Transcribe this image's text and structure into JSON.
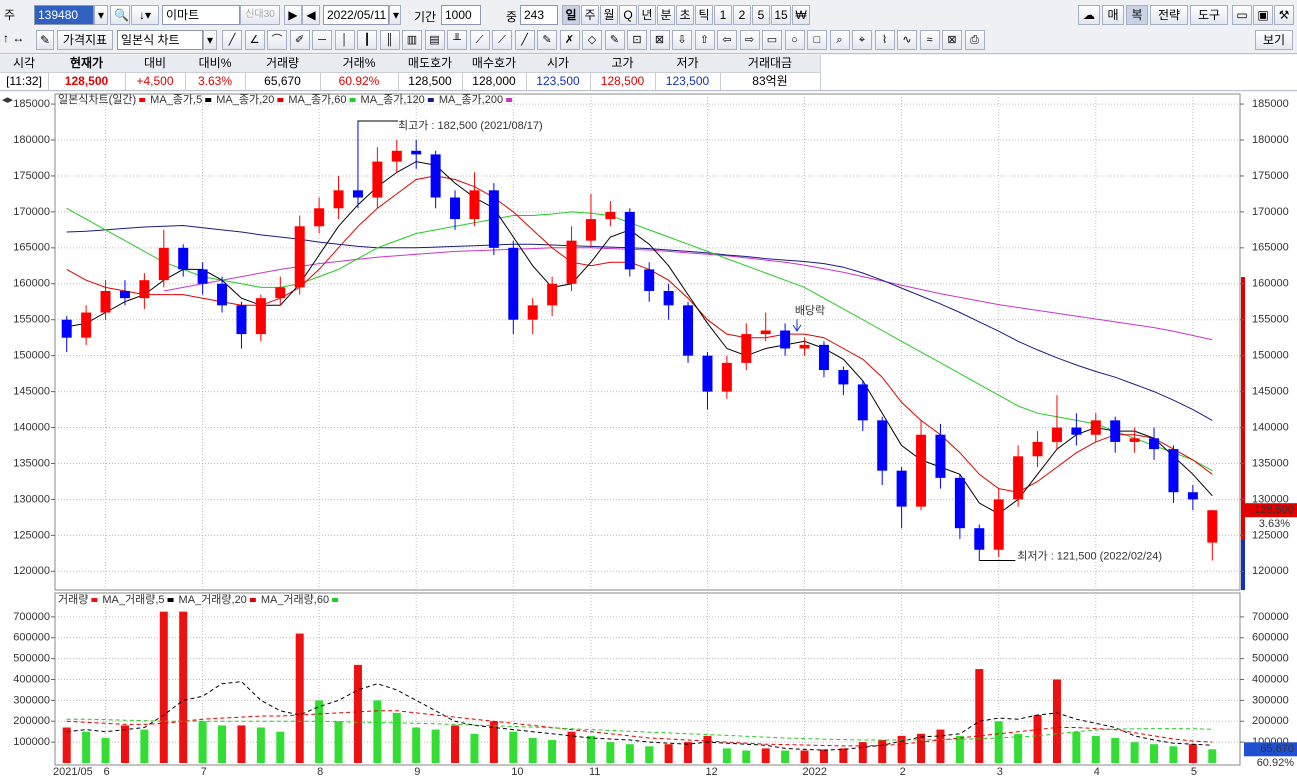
{
  "toolbar": {
    "code_label": "주",
    "code": "139480",
    "name": "이마트",
    "name_tag": "신대30",
    "date": "2022/05/11",
    "period_label": "기간",
    "period": "1000",
    "mid_label": "중",
    "mid": "243",
    "intervals": [
      "일",
      "주",
      "월",
      "Q",
      "년",
      "분",
      "초",
      "틱",
      "1",
      "2",
      "5",
      "15",
      "₩"
    ],
    "right_buttons": [
      "매",
      "복",
      "전략",
      "도구"
    ],
    "indicator": "가격지표",
    "chart_style": "일본식 차트",
    "view": "보기"
  },
  "quote_table": {
    "headers": [
      "시각",
      "현재가",
      "대비",
      "대비%",
      "거래량",
      "거래%",
      "매도호가",
      "매수호가",
      "시가",
      "고가",
      "저가",
      "거래대금"
    ],
    "values": [
      "[11:32]",
      "128,500",
      "+4,500",
      "3.63%",
      "65,670",
      "60.92%",
      "128,500",
      "128,000",
      "123,500",
      "128,500",
      "123,500",
      "83억원"
    ]
  },
  "chart_data": [
    {
      "type": "candlestick",
      "ylim": [
        117400,
        186400
      ],
      "yticks": [
        120000,
        125000,
        130000,
        135000,
        140000,
        145000,
        150000,
        155000,
        160000,
        165000,
        170000,
        175000,
        180000,
        185000
      ],
      "grid": true,
      "annotations": {
        "high": "최고가 : 182,500 (2021/08/17)",
        "low": "최저가 : 121,500 (2022/02/24)",
        "event": "배당락"
      },
      "series": [
        {
          "name": "일본식차트(일간)",
          "color": "#ff0000",
          "down_color": "#0000ff",
          "open": [
            155000,
            152500,
            156000,
            159000,
            158000,
            160500,
            165000,
            162000,
            160000,
            157000,
            153000,
            158000,
            159500,
            168000,
            170500,
            173000,
            172000,
            177000,
            178500,
            178000,
            172000,
            169000,
            173000,
            165000,
            155000,
            157000,
            160000,
            166000,
            169000,
            170000,
            162000,
            159000,
            157000,
            150000,
            145000,
            149000,
            153000,
            153500,
            151000,
            151500,
            148000,
            146000,
            141000,
            134000,
            129000,
            139000,
            133000,
            126000,
            123000,
            130000,
            136000,
            138000,
            140000,
            139000,
            141000,
            138000,
            138500,
            137000,
            131000,
            124000
          ],
          "high": [
            155500,
            157000,
            160500,
            160500,
            161500,
            167500,
            165500,
            163000,
            161000,
            157500,
            158500,
            161000,
            169500,
            172000,
            175000,
            182500,
            179000,
            180000,
            180000,
            178500,
            173000,
            175500,
            174000,
            166000,
            158000,
            161000,
            168000,
            172500,
            171500,
            170500,
            163000,
            160000,
            157500,
            150500,
            150000,
            154500,
            156000,
            154500,
            152500,
            152000,
            148500,
            146500,
            141500,
            134500,
            141000,
            140500,
            133500,
            126500,
            131500,
            137500,
            139500,
            144500,
            142000,
            142000,
            141500,
            140000,
            140000,
            137500,
            132000,
            128500
          ],
          "low": [
            150500,
            151500,
            155000,
            157000,
            156500,
            159500,
            161000,
            158500,
            156000,
            151000,
            152000,
            157000,
            158500,
            167000,
            169000,
            170500,
            170500,
            175500,
            176000,
            170500,
            167500,
            168000,
            164000,
            153000,
            153000,
            155500,
            159000,
            165000,
            168000,
            161000,
            157500,
            155000,
            149000,
            142500,
            144000,
            148000,
            152000,
            150000,
            150000,
            147000,
            144500,
            139500,
            132000,
            126000,
            128500,
            131500,
            124500,
            121500,
            122000,
            129000,
            134500,
            137000,
            137500,
            138000,
            136500,
            136500,
            135500,
            129500,
            128500,
            121500
          ],
          "close": [
            152500,
            156000,
            159000,
            158000,
            160500,
            165000,
            162000,
            160000,
            157000,
            153000,
            158000,
            159500,
            168000,
            170500,
            173000,
            172000,
            177000,
            178500,
            178000,
            172000,
            169000,
            173000,
            165000,
            155000,
            157000,
            160000,
            166000,
            169000,
            170000,
            162000,
            159000,
            157000,
            150000,
            145000,
            149000,
            153000,
            153500,
            151000,
            151500,
            148000,
            146000,
            141000,
            134000,
            129000,
            139000,
            133000,
            126000,
            123000,
            130000,
            136000,
            138000,
            140000,
            139000,
            141000,
            138000,
            138500,
            137000,
            131000,
            130000,
            128500
          ]
        },
        {
          "name": "MA_종가,5",
          "color": "#000000",
          "values": [
            154000,
            154500,
            156000,
            157500,
            158500,
            160500,
            162000,
            162000,
            160500,
            158000,
            157000,
            157000,
            160000,
            164000,
            168000,
            171000,
            173500,
            175500,
            177000,
            176500,
            174000,
            172000,
            170500,
            166500,
            162500,
            159500,
            160000,
            163000,
            166500,
            167500,
            165500,
            162500,
            158500,
            154500,
            151000,
            150000,
            151000,
            151500,
            152000,
            151000,
            149500,
            146500,
            142000,
            137500,
            135500,
            134500,
            133500,
            129500,
            128000,
            130000,
            133500,
            137000,
            139000,
            140000,
            139500,
            139500,
            138500,
            136000,
            133500,
            130500
          ]
        },
        {
          "name": "MA_종가,20",
          "color": "#e00000",
          "values": [
            162000,
            160500,
            159500,
            159000,
            158500,
            158500,
            158500,
            158000,
            157500,
            157000,
            157000,
            158000,
            159500,
            162000,
            165000,
            168000,
            170500,
            172500,
            174500,
            175000,
            174500,
            173500,
            172000,
            170000,
            167500,
            165000,
            163000,
            162500,
            163000,
            163000,
            162000,
            160500,
            158000,
            155000,
            153000,
            152500,
            152500,
            153000,
            153000,
            152500,
            151000,
            149500,
            147000,
            143500,
            141000,
            139000,
            136500,
            133500,
            131500,
            131000,
            132500,
            134500,
            136500,
            138000,
            139000,
            139000,
            138500,
            137000,
            135500,
            133500
          ]
        },
        {
          "name": "MA_종가,60",
          "color": "#22cc22",
          "values": [
            170500,
            169000,
            167500,
            166000,
            164500,
            163000,
            162000,
            161000,
            160500,
            160000,
            159500,
            159500,
            160000,
            161000,
            162000,
            163500,
            165000,
            166000,
            167000,
            167500,
            168000,
            168500,
            169000,
            169500,
            169500,
            169700,
            170000,
            169800,
            169500,
            168500,
            167500,
            166500,
            165500,
            164500,
            163500,
            162500,
            161500,
            160500,
            159500,
            158000,
            156500,
            155000,
            153500,
            152000,
            150500,
            149000,
            147500,
            146000,
            144500,
            143000,
            142000,
            141500,
            141000,
            140500,
            139500,
            138500,
            137500,
            136500,
            135500,
            134000
          ]
        },
        {
          "name": "MA_종가,120",
          "color": "#1a1a80",
          "values": [
            167200,
            167300,
            167500,
            167700,
            167900,
            168000,
            168100,
            167800,
            167500,
            167200,
            166800,
            166500,
            166200,
            165800,
            165500,
            165200,
            165000,
            165000,
            165000,
            165100,
            165200,
            165300,
            165400,
            165500,
            165500,
            165400,
            165300,
            165200,
            165100,
            165000,
            164900,
            164700,
            164500,
            164300,
            164000,
            163800,
            163500,
            163300,
            163100,
            162800,
            162300,
            161500,
            160500,
            159400,
            158300,
            157200,
            156000,
            154700,
            153400,
            152000,
            150800,
            149700,
            148700,
            147800,
            147000,
            146000,
            145000,
            143800,
            142500,
            141000
          ]
        },
        {
          "name": "MA_종가,200",
          "color": "#cc33cc",
          "values": [
            null,
            null,
            null,
            null,
            null,
            159000,
            159500,
            160000,
            160500,
            161000,
            161500,
            162000,
            162400,
            162800,
            163100,
            163400,
            163700,
            163900,
            164100,
            164300,
            164500,
            164600,
            164700,
            164800,
            164900,
            165000,
            165000,
            165000,
            164900,
            164800,
            164700,
            164500,
            164300,
            164100,
            163900,
            163600,
            163300,
            163000,
            162600,
            162100,
            161600,
            161000,
            160400,
            159800,
            159200,
            158600,
            158100,
            157600,
            157100,
            156700,
            156300,
            155900,
            155500,
            155100,
            154700,
            154300,
            153900,
            153400,
            152800,
            152200
          ]
        }
      ]
    },
    {
      "type": "bar",
      "ylim": [
        0,
        800000
      ],
      "yticks": [
        100000,
        200000,
        300000,
        400000,
        500000,
        600000,
        700000
      ],
      "grid": true,
      "categories": [
        "2021/05",
        null,
        "6",
        null,
        null,
        null,
        null,
        "7",
        null,
        null,
        null,
        null,
        null,
        "8",
        null,
        null,
        null,
        null,
        "9",
        null,
        null,
        null,
        null,
        "10",
        null,
        null,
        null,
        "11",
        null,
        null,
        null,
        null,
        null,
        "12",
        null,
        null,
        null,
        null,
        "2022",
        null,
        null,
        null,
        null,
        "2",
        null,
        null,
        null,
        null,
        "3",
        null,
        null,
        null,
        null,
        "4",
        null,
        null,
        null,
        null,
        "5",
        null
      ],
      "series": [
        {
          "name": "거래량",
          "color": "#ee1111",
          "down_color": "#33dd33",
          "values": [
            170000,
            150000,
            120000,
            180000,
            160000,
            725000,
            725000,
            200000,
            180000,
            180000,
            170000,
            150000,
            620000,
            300000,
            200000,
            470000,
            300000,
            240000,
            170000,
            160000,
            180000,
            140000,
            200000,
            150000,
            120000,
            110000,
            150000,
            130000,
            100000,
            90000,
            80000,
            90000,
            100000,
            130000,
            70000,
            60000,
            70000,
            60000,
            60000,
            65000,
            70000,
            100000,
            110000,
            130000,
            140000,
            160000,
            130000,
            450000,
            200000,
            140000,
            230000,
            400000,
            150000,
            130000,
            120000,
            100000,
            90000,
            80000,
            90000,
            65670
          ]
        },
        {
          "name": "MA_거래량,5",
          "color": "#000000",
          "values": [
            150000,
            160000,
            150000,
            160000,
            170000,
            230000,
            300000,
            320000,
            380000,
            390000,
            300000,
            250000,
            230000,
            270000,
            300000,
            350000,
            380000,
            350000,
            300000,
            250000,
            200000,
            180000,
            170000,
            160000,
            150000,
            140000,
            130000,
            120000,
            115000,
            110000,
            100000,
            95000,
            90000,
            100000,
            95000,
            90000,
            85000,
            70000,
            65000,
            62000,
            65000,
            75000,
            85000,
            105000,
            125000,
            130000,
            140000,
            200000,
            215000,
            210000,
            230000,
            240000,
            210000,
            190000,
            170000,
            130000,
            110000,
            95000,
            90000,
            85000
          ]
        },
        {
          "name": "MA_거래량,20",
          "color": "#e00000",
          "values": [
            200000,
            195000,
            190000,
            185000,
            185000,
            190000,
            200000,
            210000,
            215000,
            220000,
            225000,
            225000,
            230000,
            235000,
            240000,
            245000,
            250000,
            250000,
            240000,
            230000,
            220000,
            210000,
            200000,
            190000,
            180000,
            170000,
            160000,
            150000,
            140000,
            130000,
            120000,
            115000,
            110000,
            105000,
            100000,
            95000,
            90000,
            88000,
            86000,
            84000,
            82000,
            82000,
            84000,
            90000,
            100000,
            110000,
            120000,
            130000,
            140000,
            150000,
            160000,
            170000,
            170000,
            165000,
            160000,
            145000,
            130000,
            115000,
            105000,
            100000
          ]
        },
        {
          "name": "MA_거래량,60",
          "color": "#22cc22",
          "values": [
            210000,
            210000,
            208000,
            205000,
            203000,
            200000,
            200000,
            200000,
            200000,
            200000,
            200000,
            200000,
            200000,
            200000,
            198000,
            196000,
            194000,
            192000,
            190000,
            188000,
            185000,
            182000,
            178000,
            175000,
            172000,
            168000,
            164000,
            160000,
            156000,
            152000,
            148000,
            144000,
            140000,
            136000,
            132000,
            128000,
            124000,
            120000,
            117000,
            114000,
            112000,
            110000,
            110000,
            110000,
            111000,
            112000,
            114000,
            116000,
            120000,
            125000,
            130000,
            140000,
            150000,
            158000,
            162000,
            164000,
            165000,
            165000,
            164000,
            162000
          ]
        }
      ]
    }
  ]
}
